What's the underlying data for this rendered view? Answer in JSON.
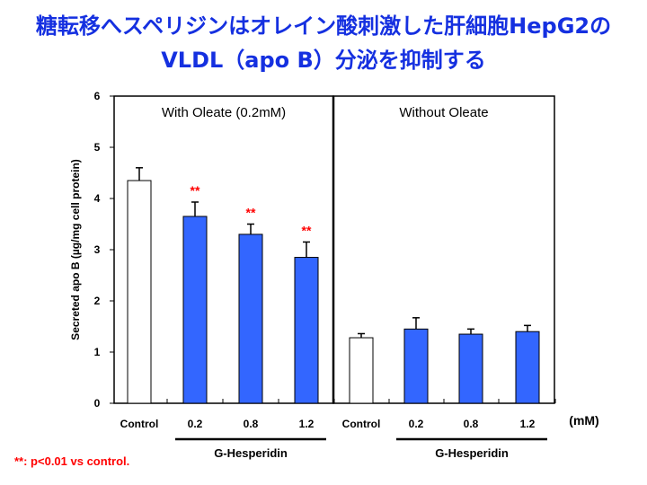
{
  "title": {
    "line1": "糖転移へスペリジンはオレイン酸刺激した肝細胞HepG2の",
    "line2": "VLDL（apo B）分泌を抑制する"
  },
  "footnote": "**: p<0.01 vs control.",
  "chart_data": {
    "type": "bar",
    "ylabel": "Secreted apo B (µg/mg cell protein)",
    "ylim": [
      0,
      6
    ],
    "yticks": [
      "0",
      "1",
      "2",
      "3",
      "4",
      "5",
      "6"
    ],
    "unit_label": "(mM)",
    "group_axis_label": "G-Hesperidin",
    "panels": [
      {
        "label": "With Oleate (0.2mM)",
        "categories": [
          "Control",
          "0.2",
          "0.8",
          "1.2"
        ],
        "values": [
          4.35,
          3.65,
          3.3,
          2.85
        ],
        "errors": [
          0.25,
          0.28,
          0.2,
          0.3
        ],
        "significance": [
          "",
          "**",
          "**",
          "**"
        ],
        "bar_colors": [
          "#ffffff",
          "#3366ff",
          "#3366ff",
          "#3366ff"
        ]
      },
      {
        "label": "Without Oleate",
        "categories": [
          "Control",
          "0.2",
          "0.8",
          "1.2"
        ],
        "values": [
          1.28,
          1.45,
          1.35,
          1.4
        ],
        "errors": [
          0.08,
          0.22,
          0.1,
          0.12
        ],
        "significance": [
          "",
          "",
          "",
          ""
        ],
        "bar_colors": [
          "#ffffff",
          "#3366ff",
          "#3366ff",
          "#3366ff"
        ]
      }
    ]
  }
}
